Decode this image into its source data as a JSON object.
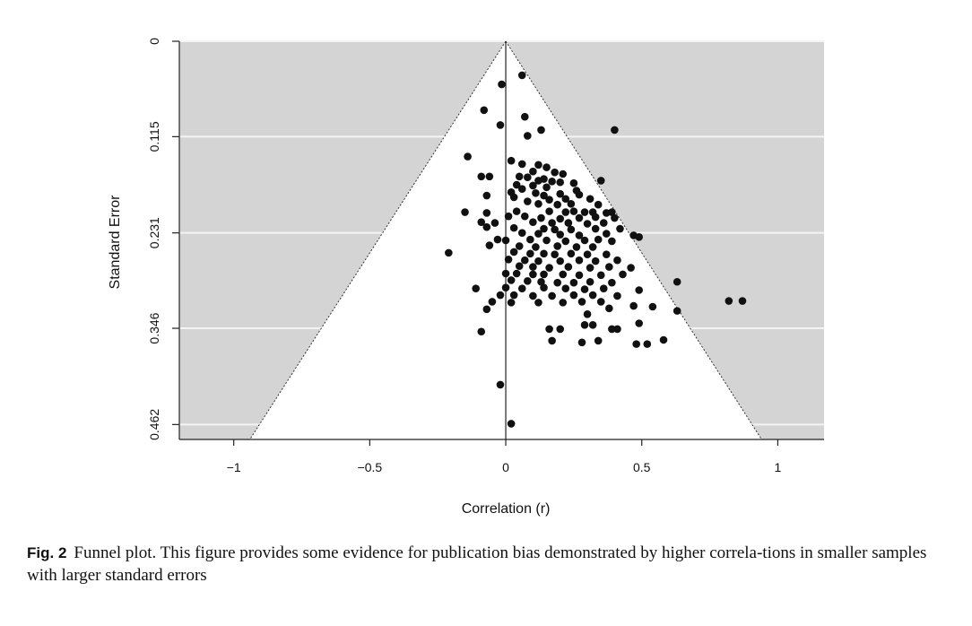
{
  "caption": {
    "label": "Fig. 2",
    "text": "Funnel plot. This figure provides some evidence for publication bias demonstrated by higher correla-tions in smaller samples with larger standard errors"
  },
  "chart_data": {
    "type": "scatter",
    "subtype": "funnel-plot",
    "title": "",
    "xlabel": "Correlation (r)",
    "ylabel": "Standard Error",
    "xlim": [
      -1.2,
      1.17
    ],
    "ylim": [
      0,
      0.48
    ],
    "y_inverted": true,
    "x_ticks": [
      -1,
      -0.5,
      0,
      0.5,
      1
    ],
    "x_tick_labels": [
      "−1",
      "−0.5",
      "0",
      "0.5",
      "1"
    ],
    "y_ticks": [
      0,
      0.115,
      0.231,
      0.346,
      0.462
    ],
    "y_tick_labels": [
      "0",
      "0.115",
      "0.231",
      "0.346",
      "0.462"
    ],
    "grid": "horizontal",
    "background_color": "#d4d4d4",
    "funnel_color": "#ffffff",
    "point_color": "#111111",
    "center_line_x": 0,
    "funnel": {
      "apex": [
        0,
        0
      ],
      "slope": 1.96
    },
    "points": [
      [
        0.06,
        0.041
      ],
      [
        -0.015,
        0.052
      ],
      [
        -0.08,
        0.083
      ],
      [
        0.07,
        0.091
      ],
      [
        -0.02,
        0.101
      ],
      [
        0.13,
        0.107
      ],
      [
        0.4,
        0.107
      ],
      [
        0.08,
        0.114
      ],
      [
        -0.14,
        0.139
      ],
      [
        0.02,
        0.144
      ],
      [
        0.06,
        0.148
      ],
      [
        0.12,
        0.149
      ],
      [
        0.15,
        0.152
      ],
      [
        0.1,
        0.157
      ],
      [
        0.18,
        0.158
      ],
      [
        0.21,
        0.16
      ],
      [
        -0.09,
        0.163
      ],
      [
        -0.06,
        0.163
      ],
      [
        0.05,
        0.163
      ],
      [
        0.08,
        0.164
      ],
      [
        0.14,
        0.166
      ],
      [
        0.12,
        0.168
      ],
      [
        0.17,
        0.169
      ],
      [
        0.35,
        0.168
      ],
      [
        0.2,
        0.17
      ],
      [
        0.25,
        0.171
      ],
      [
        0.04,
        0.173
      ],
      [
        0.1,
        0.174
      ],
      [
        0.15,
        0.176
      ],
      [
        0.06,
        0.178
      ],
      [
        0.02,
        0.182
      ],
      [
        0.26,
        0.18
      ],
      [
        0.11,
        0.183
      ],
      [
        0.2,
        0.184
      ],
      [
        0.27,
        0.185
      ],
      [
        -0.07,
        0.186
      ],
      [
        0.14,
        0.186
      ],
      [
        0.03,
        0.188
      ],
      [
        0.16,
        0.191
      ],
      [
        0.22,
        0.19
      ],
      [
        0.31,
        0.19
      ],
      [
        0.08,
        0.193
      ],
      [
        0.12,
        0.196
      ],
      [
        0.19,
        0.197
      ],
      [
        0.24,
        0.196
      ],
      [
        0.34,
        0.197
      ],
      [
        -0.15,
        0.206
      ],
      [
        -0.07,
        0.207
      ],
      [
        0.04,
        0.205
      ],
      [
        0.16,
        0.205
      ],
      [
        0.22,
        0.206
      ],
      [
        0.25,
        0.205
      ],
      [
        0.29,
        0.206
      ],
      [
        0.32,
        0.206
      ],
      [
        0.37,
        0.207
      ],
      [
        0.39,
        0.206
      ],
      [
        0.01,
        0.211
      ],
      [
        0.07,
        0.211
      ],
      [
        0.13,
        0.213
      ],
      [
        0.2,
        0.214
      ],
      [
        0.27,
        0.213
      ],
      [
        0.33,
        0.212
      ],
      [
        0.4,
        0.213
      ],
      [
        -0.09,
        0.218
      ],
      [
        -0.04,
        0.219
      ],
      [
        0.1,
        0.218
      ],
      [
        0.17,
        0.219
      ],
      [
        0.23,
        0.219
      ],
      [
        0.3,
        0.22
      ],
      [
        0.36,
        0.219
      ],
      [
        -0.07,
        0.224
      ],
      [
        0.03,
        0.225
      ],
      [
        0.14,
        0.226
      ],
      [
        0.18,
        0.227
      ],
      [
        0.24,
        0.227
      ],
      [
        0.33,
        0.226
      ],
      [
        0.42,
        0.226
      ],
      [
        0.06,
        0.231
      ],
      [
        0.12,
        0.232
      ],
      [
        0.2,
        0.233
      ],
      [
        0.27,
        0.234
      ],
      [
        0.37,
        0.232
      ],
      [
        0.47,
        0.234
      ],
      [
        0.49,
        0.236
      ],
      [
        -0.03,
        0.239
      ],
      [
        0.0,
        0.24
      ],
      [
        0.09,
        0.239
      ],
      [
        0.15,
        0.24
      ],
      [
        0.22,
        0.241
      ],
      [
        0.29,
        0.24
      ],
      [
        0.34,
        0.239
      ],
      [
        0.39,
        0.241
      ],
      [
        -0.06,
        0.246
      ],
      [
        0.05,
        0.247
      ],
      [
        0.11,
        0.248
      ],
      [
        0.19,
        0.247
      ],
      [
        0.26,
        0.248
      ],
      [
        0.32,
        0.248
      ],
      [
        -0.21,
        0.255
      ],
      [
        0.03,
        0.254
      ],
      [
        0.09,
        0.256
      ],
      [
        0.14,
        0.256
      ],
      [
        0.18,
        0.257
      ],
      [
        0.24,
        0.256
      ],
      [
        0.3,
        0.257
      ],
      [
        0.37,
        0.257
      ],
      [
        0.01,
        0.263
      ],
      [
        0.07,
        0.264
      ],
      [
        0.12,
        0.265
      ],
      [
        0.2,
        0.265
      ],
      [
        0.27,
        0.264
      ],
      [
        0.33,
        0.265
      ],
      [
        0.41,
        0.264
      ],
      [
        0.05,
        0.271
      ],
      [
        0.1,
        0.272
      ],
      [
        0.16,
        0.273
      ],
      [
        0.23,
        0.272
      ],
      [
        0.31,
        0.273
      ],
      [
        0.38,
        0.272
      ],
      [
        0.46,
        0.273
      ],
      [
        0.0,
        0.28
      ],
      [
        0.04,
        0.28
      ],
      [
        0.1,
        0.281
      ],
      [
        0.14,
        0.281
      ],
      [
        0.21,
        0.281
      ],
      [
        0.27,
        0.282
      ],
      [
        0.35,
        0.282
      ],
      [
        0.43,
        0.281
      ],
      [
        0.63,
        0.29
      ],
      [
        0.02,
        0.288
      ],
      [
        0.08,
        0.289
      ],
      [
        0.13,
        0.29
      ],
      [
        0.19,
        0.291
      ],
      [
        0.25,
        0.291
      ],
      [
        0.31,
        0.29
      ],
      [
        0.39,
        0.291
      ],
      [
        -0.11,
        0.298
      ],
      [
        0.0,
        0.297
      ],
      [
        0.06,
        0.298
      ],
      [
        0.14,
        0.297
      ],
      [
        0.22,
        0.298
      ],
      [
        0.29,
        0.299
      ],
      [
        0.36,
        0.298
      ],
      [
        0.49,
        0.3
      ],
      [
        -0.02,
        0.306
      ],
      [
        0.03,
        0.306
      ],
      [
        0.1,
        0.307
      ],
      [
        0.17,
        0.307
      ],
      [
        0.25,
        0.306
      ],
      [
        0.32,
        0.306
      ],
      [
        0.41,
        0.307
      ],
      [
        -0.05,
        0.314
      ],
      [
        0.02,
        0.315
      ],
      [
        0.12,
        0.315
      ],
      [
        0.21,
        0.315
      ],
      [
        0.28,
        0.314
      ],
      [
        0.35,
        0.314
      ],
      [
        0.82,
        0.313
      ],
      [
        0.87,
        0.313
      ],
      [
        0.47,
        0.319
      ],
      [
        0.54,
        0.32
      ],
      [
        0.38,
        0.322
      ],
      [
        0.63,
        0.325
      ],
      [
        0.3,
        0.329
      ],
      [
        -0.07,
        0.323
      ],
      [
        0.49,
        0.34
      ],
      [
        0.16,
        0.347
      ],
      [
        0.2,
        0.347
      ],
      [
        0.29,
        0.342
      ],
      [
        0.32,
        0.342
      ],
      [
        0.39,
        0.347
      ],
      [
        0.41,
        0.347
      ],
      [
        -0.09,
        0.35
      ],
      [
        0.17,
        0.361
      ],
      [
        0.28,
        0.363
      ],
      [
        0.34,
        0.361
      ],
      [
        0.58,
        0.36
      ],
      [
        0.48,
        0.365
      ],
      [
        0.52,
        0.365
      ],
      [
        -0.02,
        0.414
      ],
      [
        0.02,
        0.461
      ]
    ]
  }
}
